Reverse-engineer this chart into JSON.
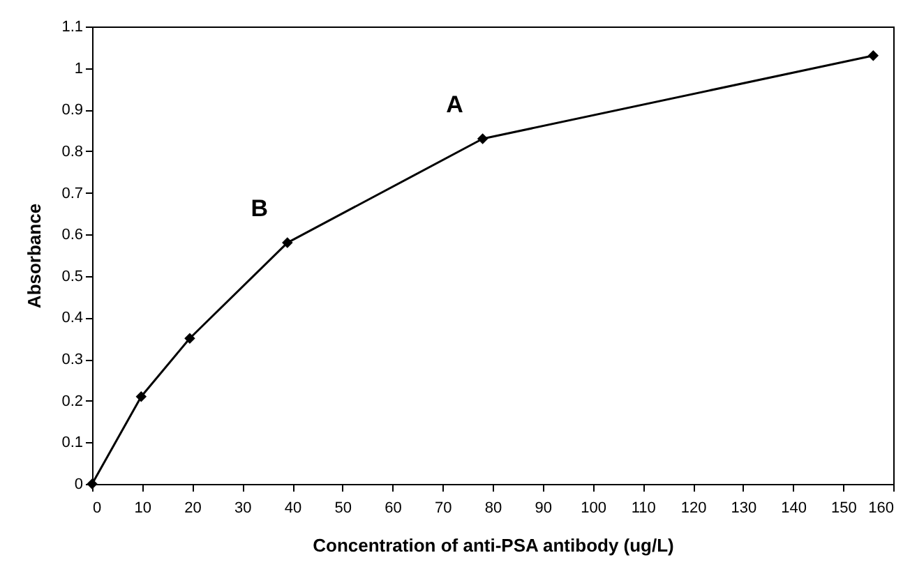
{
  "chart_data": {
    "type": "line",
    "xlabel": "Concentration of anti-PSA antibody (ug/L)",
    "ylabel": "Absorbance",
    "x": [
      0,
      9.8,
      19.5,
      39,
      78,
      156
    ],
    "series": [
      {
        "color": "#000000",
        "values": [
          0,
          0.21,
          0.35,
          0.58,
          0.83,
          1.03
        ]
      }
    ],
    "xlim": [
      0,
      160
    ],
    "xticks": [
      0,
      10,
      20,
      30,
      40,
      50,
      60,
      70,
      80,
      90,
      100,
      110,
      120,
      130,
      140,
      150,
      160
    ],
    "ylim": [
      0,
      1.1
    ],
    "yticks": [
      0,
      0.1,
      0.2,
      0.3,
      0.4,
      0.5,
      0.6,
      0.7,
      0.8,
      0.9,
      1,
      1.1
    ],
    "grid": false,
    "marker": "diamond",
    "line_style": "solid",
    "annotations": [
      {
        "text": "A",
        "x": 78,
        "y": 0.83
      },
      {
        "text": "B",
        "x": 39,
        "y": 0.58
      }
    ]
  }
}
